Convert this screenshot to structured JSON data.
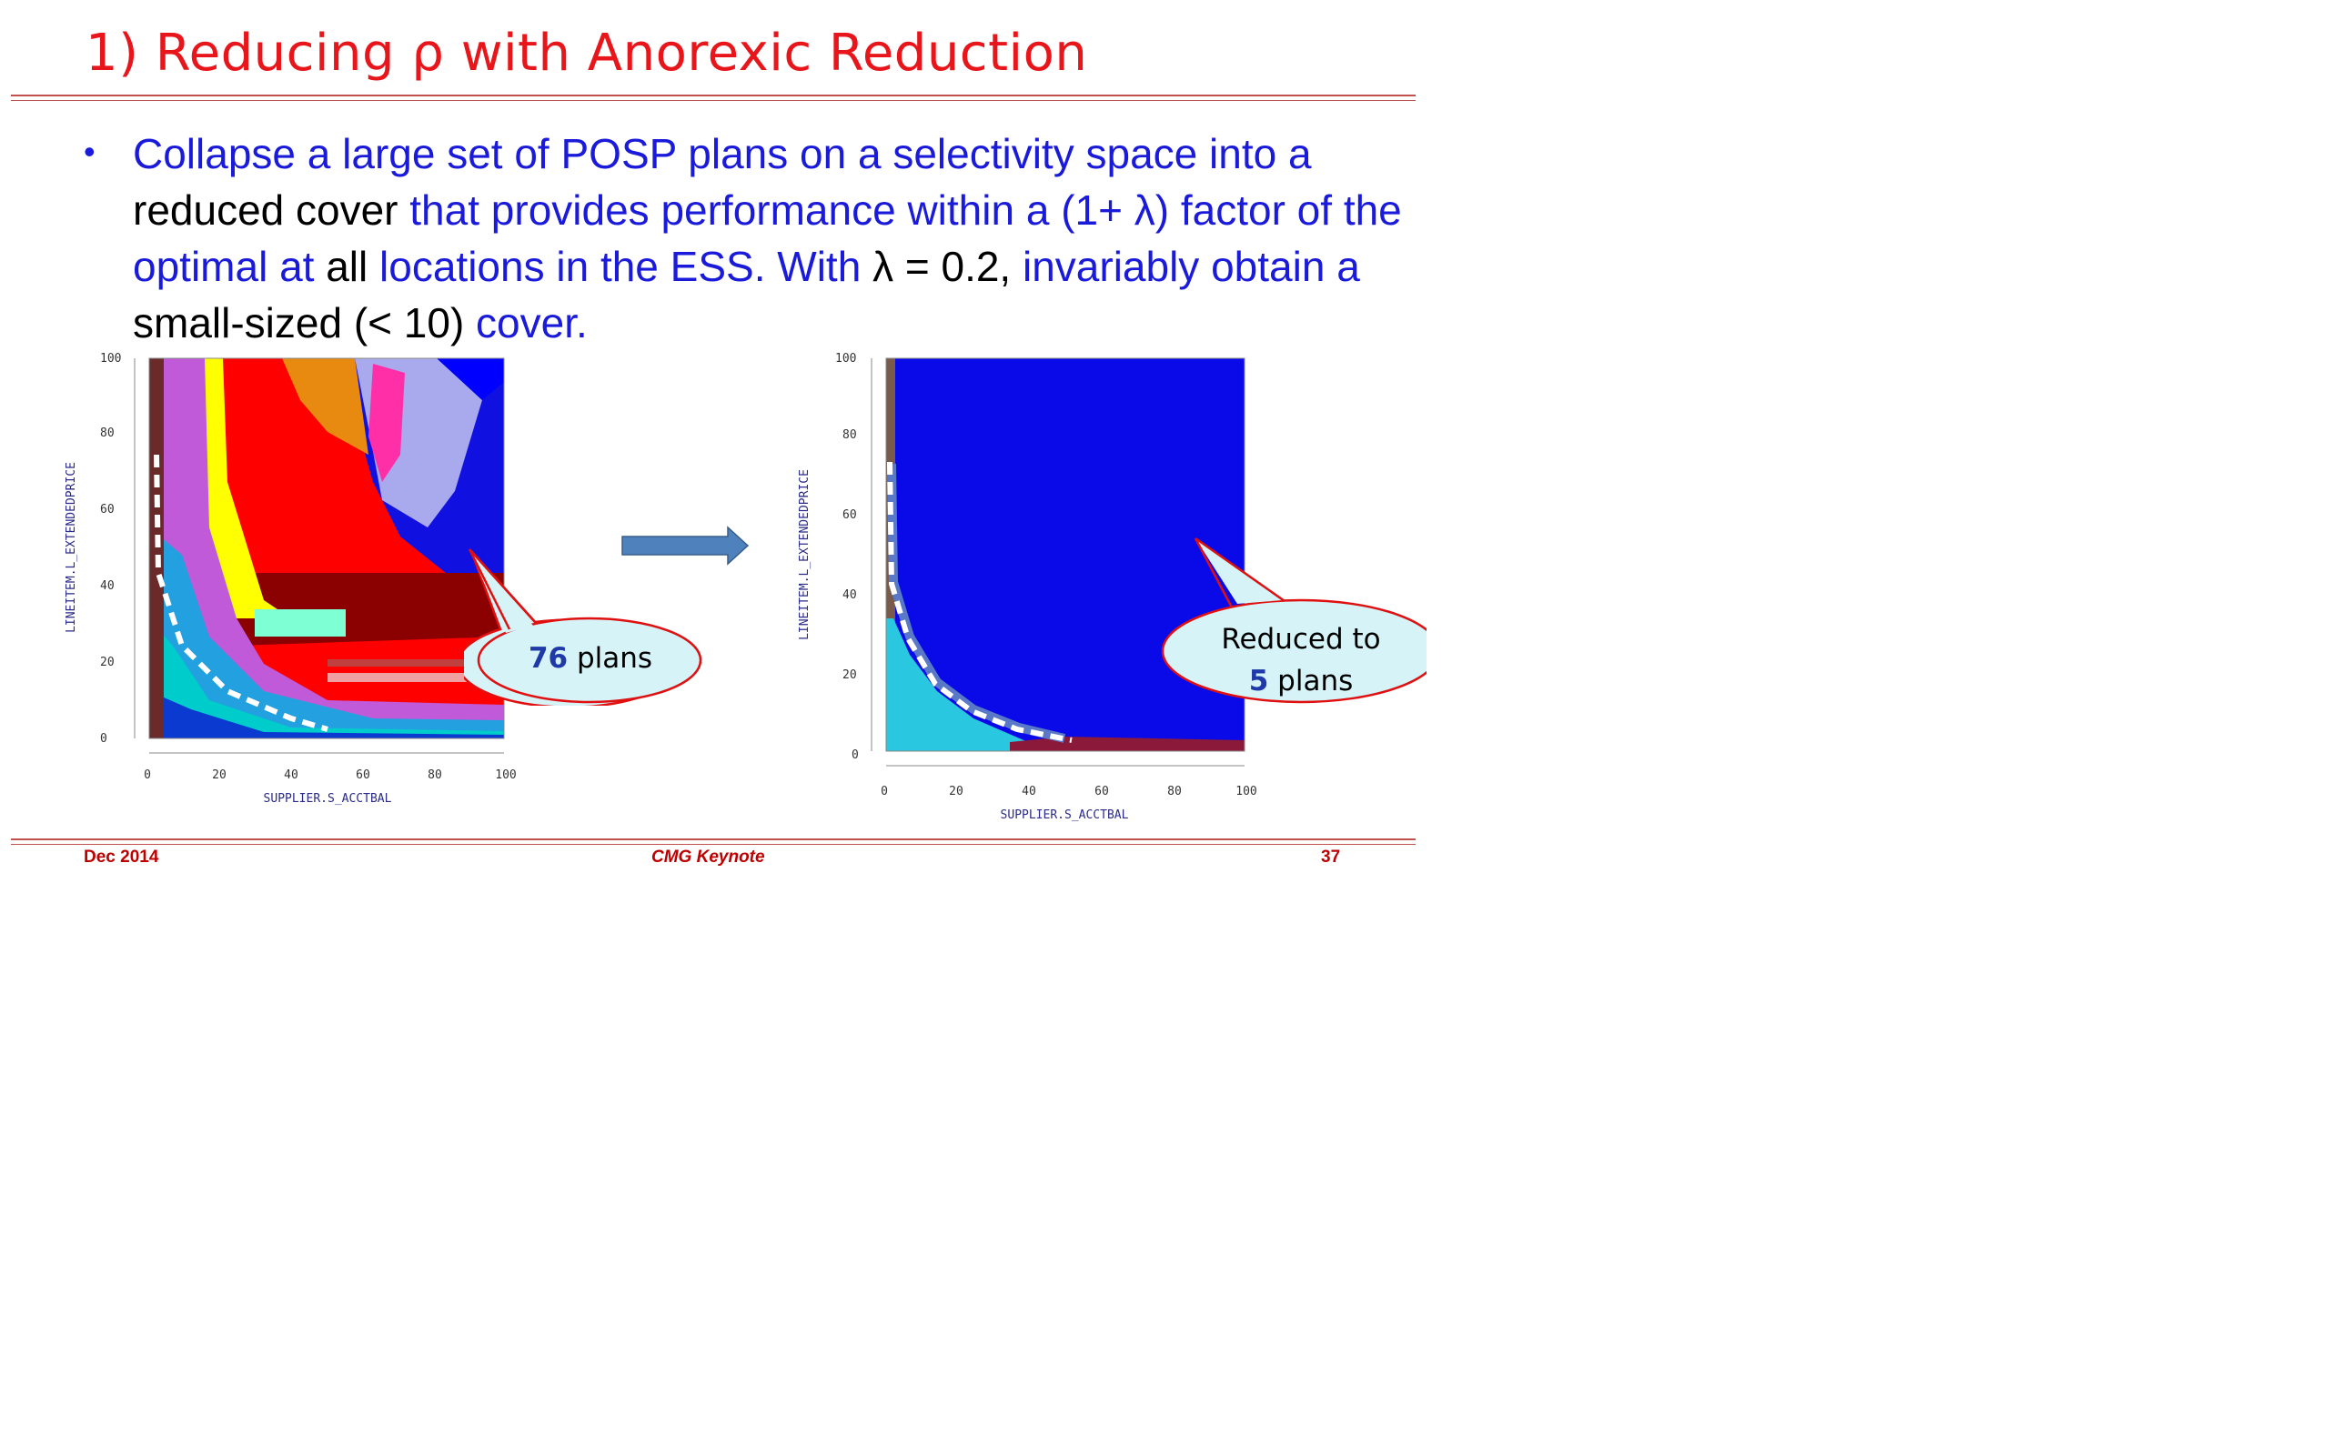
{
  "slide": {
    "title": "1) Reducing ρ with Anorexic Reduction",
    "bullet": {
      "marker": "•",
      "segments": [
        {
          "text": "Collapse a large set of POSP plans on a selectivity space into a ",
          "color": "#1a1adb"
        },
        {
          "text": "reduced cover",
          "color": "#000000"
        },
        {
          "text": " that provides performance within a (1+ λ) factor of the optimal at ",
          "color": "#1a1adb"
        },
        {
          "text": "all",
          "color": "#000000"
        },
        {
          "text": " locations in the ESS. With ",
          "color": "#1a1adb"
        },
        {
          "text": "λ = 0.2,",
          "color": "#000000"
        },
        {
          "text": " invariably obtain a ",
          "color": "#1a1adb"
        },
        {
          "text": "small-sized (< 10)",
          "color": "#000000"
        },
        {
          "text": " cover.",
          "color": "#1a1adb"
        }
      ]
    }
  },
  "plots": {
    "left": {
      "xlabel": "SUPPLIER.S_ACCTBAL",
      "ylabel": "LINEITEM.L_EXTENDEDPRICE",
      "xticks": [
        "0",
        "20",
        "40",
        "60",
        "80",
        "100"
      ],
      "yticks": [
        "0",
        "20",
        "40",
        "60",
        "80",
        "100"
      ],
      "callout": {
        "number": "76",
        "text": " plans"
      }
    },
    "right": {
      "xlabel": "SUPPLIER.S_ACCTBAL",
      "ylabel": "LINEITEM.L_EXTENDEDPRICE",
      "xticks": [
        "0",
        "20",
        "40",
        "60",
        "80",
        "100"
      ],
      "yticks": [
        "0",
        "20",
        "40",
        "60",
        "80",
        "100"
      ],
      "callout": {
        "line1": "Reduced to",
        "number": "5",
        "text": " plans"
      }
    }
  },
  "arrow": {
    "icon": "right-arrow-icon",
    "color": "#4f81bd"
  },
  "footer": {
    "left": "Dec 2014",
    "center": "CMG Keynote",
    "right": "37"
  },
  "colors": {
    "title": "#e8151b",
    "body_blue": "#1a1adb",
    "rule": "#c0504d",
    "footer": "#c00000",
    "callout_fill": "#d6f3f7",
    "callout_border": "#e01010"
  }
}
